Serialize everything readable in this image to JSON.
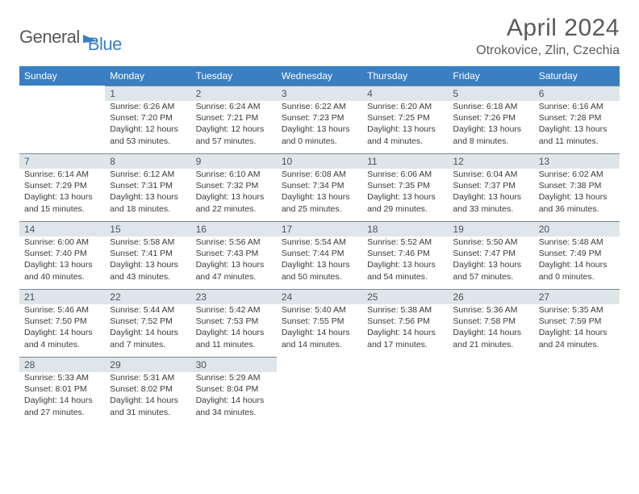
{
  "brand": {
    "part1": "General",
    "part2": "Blue"
  },
  "title": "April 2024",
  "location": "Otrokovice, Zlin, Czechia",
  "day_headers": [
    "Sunday",
    "Monday",
    "Tuesday",
    "Wednesday",
    "Thursday",
    "Friday",
    "Saturday"
  ],
  "colors": {
    "header_bg": "#3a7fc4",
    "header_text": "#ffffff",
    "daynum_bg": "#dfe6ea",
    "daynum_border": "#7a8a96",
    "body_text": "#3a3a3a",
    "title_text": "#5a5a5c",
    "logo_gray": "#58585a",
    "logo_blue": "#3a7fc4",
    "background": "#ffffff"
  },
  "typography": {
    "title_fontsize": 30,
    "location_fontsize": 16,
    "header_fontsize": 12,
    "daynum_fontsize": 12,
    "cell_fontsize": 10.5
  },
  "layout": {
    "columns": 7,
    "rows": 5,
    "first_day_column_index": 1
  },
  "weeks": [
    [
      null,
      {
        "n": "1",
        "sunrise": "Sunrise: 6:26 AM",
        "sunset": "Sunset: 7:20 PM",
        "daylight1": "Daylight: 12 hours",
        "daylight2": "and 53 minutes."
      },
      {
        "n": "2",
        "sunrise": "Sunrise: 6:24 AM",
        "sunset": "Sunset: 7:21 PM",
        "daylight1": "Daylight: 12 hours",
        "daylight2": "and 57 minutes."
      },
      {
        "n": "3",
        "sunrise": "Sunrise: 6:22 AM",
        "sunset": "Sunset: 7:23 PM",
        "daylight1": "Daylight: 13 hours",
        "daylight2": "and 0 minutes."
      },
      {
        "n": "4",
        "sunrise": "Sunrise: 6:20 AM",
        "sunset": "Sunset: 7:25 PM",
        "daylight1": "Daylight: 13 hours",
        "daylight2": "and 4 minutes."
      },
      {
        "n": "5",
        "sunrise": "Sunrise: 6:18 AM",
        "sunset": "Sunset: 7:26 PM",
        "daylight1": "Daylight: 13 hours",
        "daylight2": "and 8 minutes."
      },
      {
        "n": "6",
        "sunrise": "Sunrise: 6:16 AM",
        "sunset": "Sunset: 7:28 PM",
        "daylight1": "Daylight: 13 hours",
        "daylight2": "and 11 minutes."
      }
    ],
    [
      {
        "n": "7",
        "sunrise": "Sunrise: 6:14 AM",
        "sunset": "Sunset: 7:29 PM",
        "daylight1": "Daylight: 13 hours",
        "daylight2": "and 15 minutes."
      },
      {
        "n": "8",
        "sunrise": "Sunrise: 6:12 AM",
        "sunset": "Sunset: 7:31 PM",
        "daylight1": "Daylight: 13 hours",
        "daylight2": "and 18 minutes."
      },
      {
        "n": "9",
        "sunrise": "Sunrise: 6:10 AM",
        "sunset": "Sunset: 7:32 PM",
        "daylight1": "Daylight: 13 hours",
        "daylight2": "and 22 minutes."
      },
      {
        "n": "10",
        "sunrise": "Sunrise: 6:08 AM",
        "sunset": "Sunset: 7:34 PM",
        "daylight1": "Daylight: 13 hours",
        "daylight2": "and 25 minutes."
      },
      {
        "n": "11",
        "sunrise": "Sunrise: 6:06 AM",
        "sunset": "Sunset: 7:35 PM",
        "daylight1": "Daylight: 13 hours",
        "daylight2": "and 29 minutes."
      },
      {
        "n": "12",
        "sunrise": "Sunrise: 6:04 AM",
        "sunset": "Sunset: 7:37 PM",
        "daylight1": "Daylight: 13 hours",
        "daylight2": "and 33 minutes."
      },
      {
        "n": "13",
        "sunrise": "Sunrise: 6:02 AM",
        "sunset": "Sunset: 7:38 PM",
        "daylight1": "Daylight: 13 hours",
        "daylight2": "and 36 minutes."
      }
    ],
    [
      {
        "n": "14",
        "sunrise": "Sunrise: 6:00 AM",
        "sunset": "Sunset: 7:40 PM",
        "daylight1": "Daylight: 13 hours",
        "daylight2": "and 40 minutes."
      },
      {
        "n": "15",
        "sunrise": "Sunrise: 5:58 AM",
        "sunset": "Sunset: 7:41 PM",
        "daylight1": "Daylight: 13 hours",
        "daylight2": "and 43 minutes."
      },
      {
        "n": "16",
        "sunrise": "Sunrise: 5:56 AM",
        "sunset": "Sunset: 7:43 PM",
        "daylight1": "Daylight: 13 hours",
        "daylight2": "and 47 minutes."
      },
      {
        "n": "17",
        "sunrise": "Sunrise: 5:54 AM",
        "sunset": "Sunset: 7:44 PM",
        "daylight1": "Daylight: 13 hours",
        "daylight2": "and 50 minutes."
      },
      {
        "n": "18",
        "sunrise": "Sunrise: 5:52 AM",
        "sunset": "Sunset: 7:46 PM",
        "daylight1": "Daylight: 13 hours",
        "daylight2": "and 54 minutes."
      },
      {
        "n": "19",
        "sunrise": "Sunrise: 5:50 AM",
        "sunset": "Sunset: 7:47 PM",
        "daylight1": "Daylight: 13 hours",
        "daylight2": "and 57 minutes."
      },
      {
        "n": "20",
        "sunrise": "Sunrise: 5:48 AM",
        "sunset": "Sunset: 7:49 PM",
        "daylight1": "Daylight: 14 hours",
        "daylight2": "and 0 minutes."
      }
    ],
    [
      {
        "n": "21",
        "sunrise": "Sunrise: 5:46 AM",
        "sunset": "Sunset: 7:50 PM",
        "daylight1": "Daylight: 14 hours",
        "daylight2": "and 4 minutes."
      },
      {
        "n": "22",
        "sunrise": "Sunrise: 5:44 AM",
        "sunset": "Sunset: 7:52 PM",
        "daylight1": "Daylight: 14 hours",
        "daylight2": "and 7 minutes."
      },
      {
        "n": "23",
        "sunrise": "Sunrise: 5:42 AM",
        "sunset": "Sunset: 7:53 PM",
        "daylight1": "Daylight: 14 hours",
        "daylight2": "and 11 minutes."
      },
      {
        "n": "24",
        "sunrise": "Sunrise: 5:40 AM",
        "sunset": "Sunset: 7:55 PM",
        "daylight1": "Daylight: 14 hours",
        "daylight2": "and 14 minutes."
      },
      {
        "n": "25",
        "sunrise": "Sunrise: 5:38 AM",
        "sunset": "Sunset: 7:56 PM",
        "daylight1": "Daylight: 14 hours",
        "daylight2": "and 17 minutes."
      },
      {
        "n": "26",
        "sunrise": "Sunrise: 5:36 AM",
        "sunset": "Sunset: 7:58 PM",
        "daylight1": "Daylight: 14 hours",
        "daylight2": "and 21 minutes."
      },
      {
        "n": "27",
        "sunrise": "Sunrise: 5:35 AM",
        "sunset": "Sunset: 7:59 PM",
        "daylight1": "Daylight: 14 hours",
        "daylight2": "and 24 minutes."
      }
    ],
    [
      {
        "n": "28",
        "sunrise": "Sunrise: 5:33 AM",
        "sunset": "Sunset: 8:01 PM",
        "daylight1": "Daylight: 14 hours",
        "daylight2": "and 27 minutes."
      },
      {
        "n": "29",
        "sunrise": "Sunrise: 5:31 AM",
        "sunset": "Sunset: 8:02 PM",
        "daylight1": "Daylight: 14 hours",
        "daylight2": "and 31 minutes."
      },
      {
        "n": "30",
        "sunrise": "Sunrise: 5:29 AM",
        "sunset": "Sunset: 8:04 PM",
        "daylight1": "Daylight: 14 hours",
        "daylight2": "and 34 minutes."
      },
      null,
      null,
      null,
      null
    ]
  ]
}
